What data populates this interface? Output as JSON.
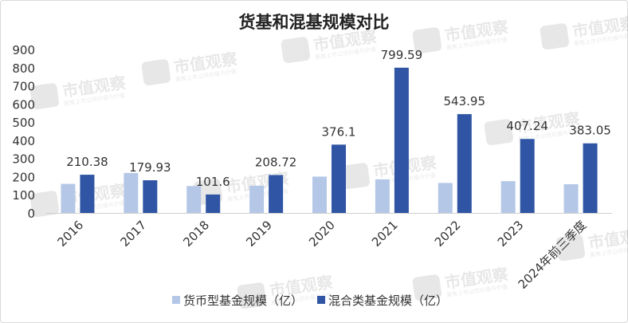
{
  "chart_data": {
    "type": "bar",
    "title": "货基和混基规模对比",
    "categories": [
      "2016",
      "2017",
      "2018",
      "2019",
      "2020",
      "2021",
      "2022",
      "2023",
      "2024年前三季度"
    ],
    "series": [
      {
        "name": "货币型基金规模（亿）",
        "color": "#b4c7e7",
        "values": [
          160,
          220,
          148,
          150,
          200,
          185,
          165,
          175,
          158
        ],
        "labels": [
          "",
          "",
          "",
          "",
          "",
          "",
          "",
          "",
          ""
        ]
      },
      {
        "name": "混合类基金规模（亿）",
        "color": "#2f55a4",
        "values": [
          210.38,
          179.93,
          101.6,
          208.72,
          376.1,
          799.59,
          543.95,
          407.24,
          383.05
        ],
        "labels": [
          "210.38",
          "179.93",
          "101.6",
          "208.72",
          "376.1",
          "799.59",
          "543.95",
          "407.24",
          "383.05"
        ]
      }
    ],
    "ylim": [
      0,
      900
    ],
    "yticks": [
      "0",
      "100",
      "200",
      "300",
      "400",
      "500",
      "600",
      "700",
      "800",
      "900"
    ],
    "xlabel": "",
    "ylabel": "",
    "grid": false,
    "legend_position": "bottom"
  },
  "watermark": {
    "text": "市值观察",
    "subtext": "聚焦上市公司价值与价值"
  }
}
